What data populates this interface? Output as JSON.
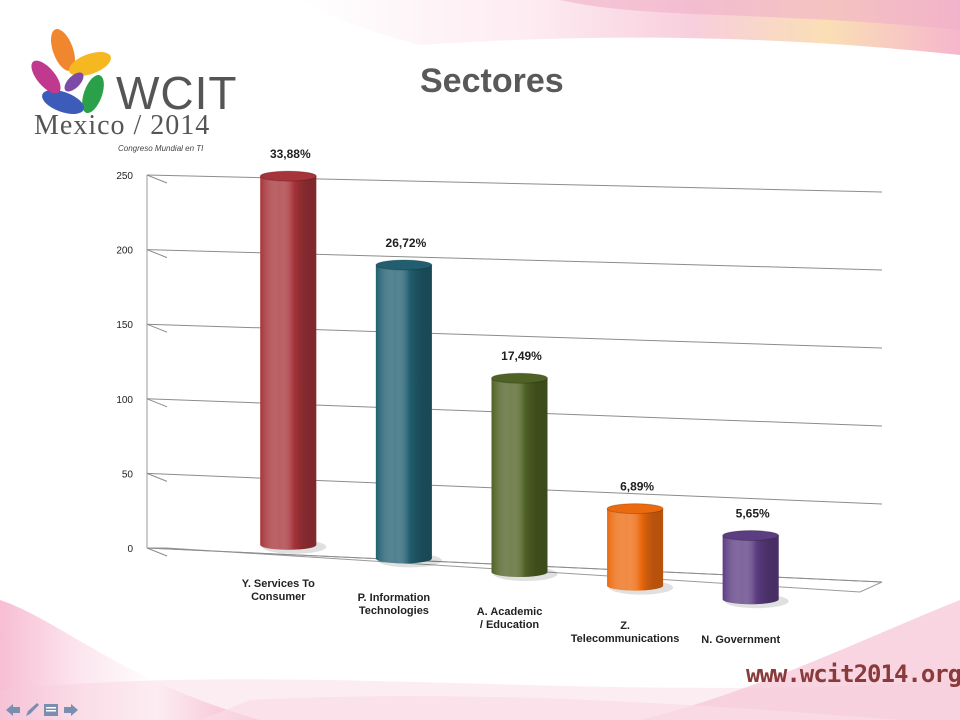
{
  "slide": {
    "title": "Sectores",
    "logo": {
      "name": "WCIT",
      "location_year": "Mexico / 2014",
      "tagline": "Congreso Mundial en TI"
    },
    "url": "www.wcit2014.org"
  },
  "colors": {
    "bar1": "#a6343a",
    "bar2": "#215f70",
    "bar3": "#4f6124",
    "bar4": "#ec6a0f",
    "bar5": "#5c3d82",
    "text": "#1f1f1f"
  },
  "chart_data": {
    "type": "bar",
    "title": "",
    "xlabel": "",
    "ylabel": "",
    "ylim": [
      0,
      250
    ],
    "yticks": [
      "0",
      "50",
      "100",
      "150",
      "200",
      "250"
    ],
    "grid": true,
    "categories": [
      "Y. Services To Consumer",
      "P. Information Technologies",
      "A. Academic / Education",
      "Z. Telecommunications",
      "N. Government"
    ],
    "values": [
      246,
      194,
      127,
      50,
      41
    ],
    "data_labels": [
      "33,88%",
      "26,72%",
      "17,49%",
      "6,89%",
      "5,65%"
    ]
  }
}
